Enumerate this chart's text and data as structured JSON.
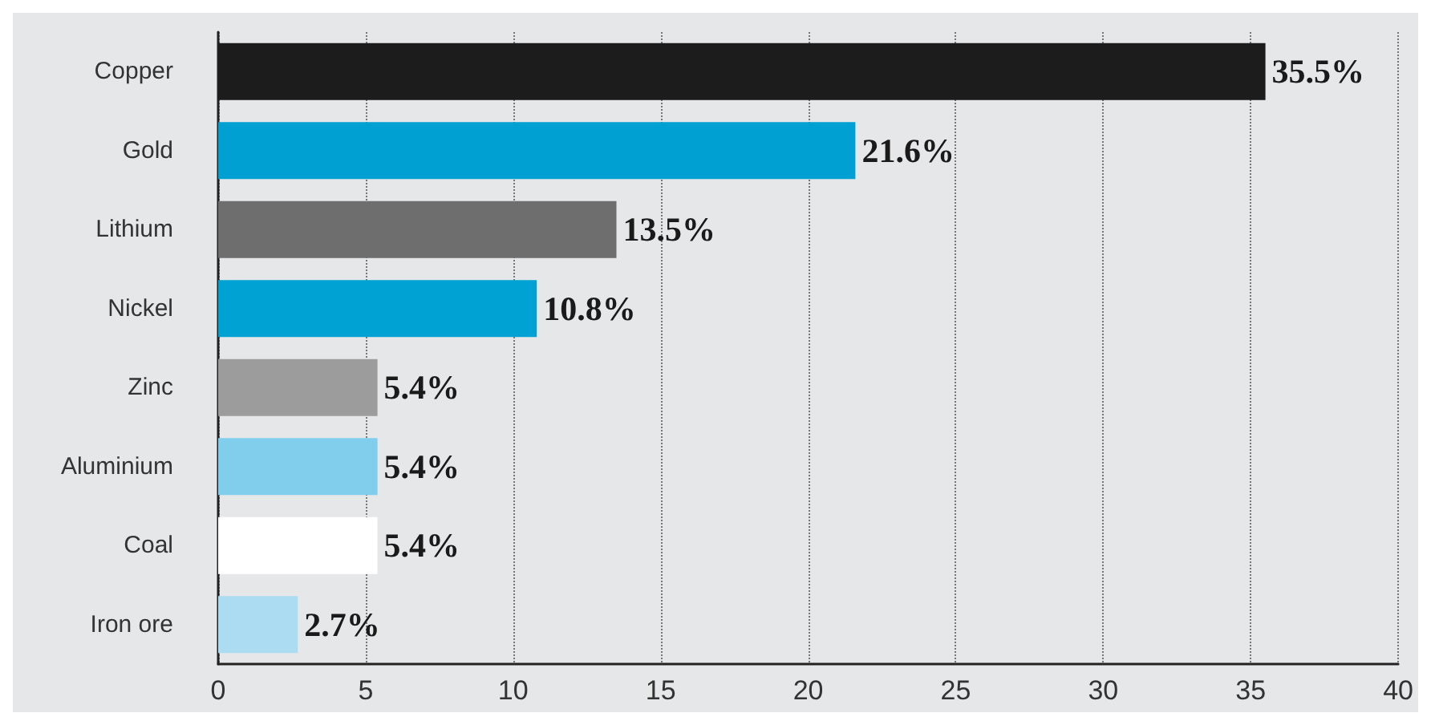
{
  "chart_data": {
    "type": "bar",
    "orientation": "horizontal",
    "categories": [
      "Copper",
      "Gold",
      "Lithium",
      "Nickel",
      "Zinc",
      "Aluminium",
      "Coal",
      "Iron ore"
    ],
    "values": [
      35.5,
      21.6,
      13.5,
      10.8,
      5.4,
      5.4,
      5.4,
      2.7
    ],
    "colors": [
      "#1c1c1c",
      "#00a0d2",
      "#6e6e6e",
      "#00a2d3",
      "#9c9c9c",
      "#80cdec",
      "#ffffff",
      "#acdcf1"
    ],
    "value_labels": [
      "35.5%",
      "21.6%",
      "13.5%",
      "10.8%",
      "5.4%",
      "5.4%",
      "5.4%",
      "2.7%"
    ],
    "xlim": [
      0,
      40
    ],
    "xticks": [
      0,
      5,
      10,
      15,
      20,
      25,
      30,
      35,
      40
    ],
    "grid": "x"
  }
}
